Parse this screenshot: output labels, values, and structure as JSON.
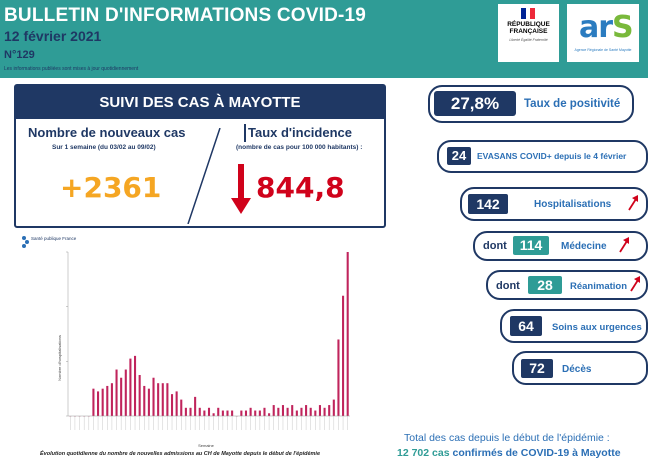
{
  "header": {
    "title": "BULLETIN D'INFORMATIONS COVID-19",
    "date": "12 février 2021",
    "number": "N°129",
    "note": "Les informations publiées sont mises à jour quotidiennement",
    "logo_rf_text": "RÉPUBLIQUE FRANÇAISE",
    "logo_rf_motto": "Liberté Égalité Fraternité",
    "logo_ars": "ars",
    "logo_ars_sub": "Agence Régionale de Santé Mayotte"
  },
  "main": {
    "title": "SUIVI DES CAS À MAYOTTE",
    "new_cases_label": "Nombre de nouveaux cas",
    "new_cases_period": "Sur 1 semaine (du 03/02 au 09/02)",
    "new_cases_value": "+2361",
    "incidence_label": "Taux d'incidence",
    "incidence_unit": "(nombre de cas pour 100 000 habitants) :",
    "incidence_value": "844,8"
  },
  "colors": {
    "navy": "#1f3864",
    "teal": "#2f9c96",
    "orange": "#f5a623",
    "red": "#d0021b",
    "blue": "#2b6fb5",
    "bar": "#c0245c"
  },
  "indicators": {
    "positivity": {
      "value": "27,8%",
      "label": "Taux de positivité"
    },
    "evasans": {
      "value": "24",
      "label": "EVASANS COVID+ depuis le 4 février"
    },
    "hospitalisations": {
      "value": "142",
      "label": "Hospitalisations",
      "trend": "up"
    },
    "medecine": {
      "prefix": "dont",
      "value": "114",
      "label": "Médecine",
      "trend": "up"
    },
    "reanimation": {
      "prefix": "dont",
      "value": "28",
      "label": "Réanimation",
      "trend": "up"
    },
    "urgences": {
      "value": "64",
      "label": "Soins aux urgences"
    },
    "deces": {
      "value": "72",
      "label": "Décès"
    }
  },
  "totals": {
    "line1": "Total des cas depuis le début de l'épidémie :",
    "count": "12 702 cas",
    "rest": "confirmés de COVID-19 à Mayotte"
  },
  "chart_caption": "Évolution quotidienne du nombre de nouvelles admissions au CH de Mayotte depuis le début de l'épidémie",
  "chart_data": {
    "type": "bar",
    "logo_text": "Santé publique France",
    "ylabel": "Nombre d'hospitalisations",
    "xlabel": "Semaine",
    "ylim": [
      0,
      60
    ],
    "values": [
      0,
      0,
      0,
      0,
      0,
      10,
      9,
      10,
      11,
      12,
      17,
      14,
      17,
      21,
      22,
      15,
      11,
      10,
      14,
      12,
      12,
      12,
      8,
      9,
      6,
      3,
      3,
      7,
      3,
      2,
      3,
      1,
      3,
      2,
      2,
      2,
      0,
      2,
      2,
      3,
      2,
      2,
      3,
      1,
      4,
      3,
      4,
      3,
      4,
      2,
      3,
      4,
      3,
      2,
      4,
      3,
      4,
      6,
      28,
      44,
      60
    ]
  }
}
